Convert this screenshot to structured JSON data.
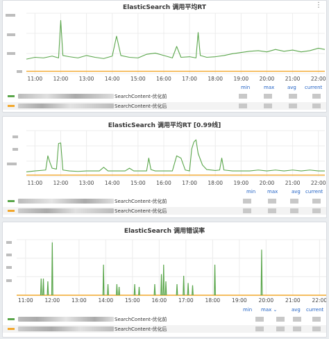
{
  "colors": {
    "series1": "#5aa64b",
    "series2": "#f2a72b",
    "grid": "#ececec",
    "legend_head": "#1f60c4"
  },
  "legend_headers": [
    "min",
    "max",
    "avg",
    "current"
  ],
  "panels": [
    {
      "title": "ElasticSearch 调用平均RT",
      "legend_headers": [
        "min",
        "max",
        "avg",
        "current"
      ],
      "legend": [
        {
          "label": "SearchContent-优化前",
          "color": "#5aa64b"
        },
        {
          "label": "SearchContent-优化后",
          "color": "#f2a72b"
        }
      ]
    },
    {
      "title": "ElasticSearch 调用平均RT [0.99线]",
      "legend_headers": [
        "min",
        "max",
        "avg",
        "current"
      ],
      "legend": [
        {
          "label": "SearchContent-优化前",
          "color": "#5aa64b"
        },
        {
          "label": "SearchContent-优化后",
          "color": "#f2a72b"
        }
      ]
    },
    {
      "title": "ElasticSearch 调用错误率",
      "legend_headers": [
        "min",
        "max ⌄",
        "avg",
        "current"
      ],
      "legend": [
        {
          "label": "SearchContent-优化前",
          "color": "#5aa64b"
        },
        {
          "label": "SearchContent-优化后",
          "color": "#f2a72b"
        }
      ]
    }
  ],
  "chart_data": [
    {
      "type": "line",
      "title": "ElasticSearch 调用平均RT",
      "x_ticks": [
        "11:00",
        "12:00",
        "13:00",
        "14:00",
        "15:00",
        "16:00",
        "17:00",
        "18:00",
        "19:00",
        "20:00",
        "21:00",
        "22:00"
      ],
      "xlim": [
        "10:40",
        "22:15"
      ],
      "ylim": [
        0,
        100
      ],
      "grid": true,
      "legend_placement": "bottom",
      "series": [
        {
          "name": "SearchContent-优化前",
          "x": [
            "10:40",
            "11:00",
            "11:20",
            "11:40",
            "11:55",
            "12:00",
            "12:05",
            "12:20",
            "12:40",
            "13:00",
            "13:20",
            "13:40",
            "14:00",
            "14:10",
            "14:20",
            "14:40",
            "15:00",
            "15:20",
            "15:40",
            "16:00",
            "16:20",
            "16:30",
            "16:40",
            "17:00",
            "17:15",
            "17:20",
            "17:25",
            "17:40",
            "18:00",
            "18:20",
            "18:40",
            "19:00",
            "19:20",
            "19:40",
            "20:00",
            "20:20",
            "20:40",
            "21:00",
            "21:20",
            "21:40",
            "22:00",
            "22:15"
          ],
          "values": [
            24,
            27,
            26,
            29,
            26,
            88,
            30,
            28,
            26,
            30,
            27,
            25,
            29,
            62,
            30,
            27,
            26,
            32,
            34,
            30,
            26,
            45,
            27,
            28,
            26,
            68,
            30,
            27,
            28,
            30,
            33,
            35,
            37,
            38,
            36,
            40,
            37,
            39,
            36,
            38,
            42,
            40
          ]
        },
        {
          "name": "SearchContent-优化后",
          "x": [
            "10:40",
            "12:00",
            "14:00",
            "16:00",
            "18:00",
            "20:00",
            "22:15"
          ],
          "values": [
            4,
            4,
            4,
            4,
            4,
            4,
            4
          ]
        }
      ]
    },
    {
      "type": "line",
      "title": "ElasticSearch 调用平均RT [0.99线]",
      "x_ticks": [
        "11:00",
        "12:00",
        "13:00",
        "14:00",
        "15:00",
        "16:00",
        "17:00",
        "18:00",
        "19:00",
        "20:00",
        "21:00",
        "22:00"
      ],
      "xlim": [
        "10:40",
        "22:15"
      ],
      "ylim": [
        0,
        100
      ],
      "grid": true,
      "legend_placement": "bottom",
      "series": [
        {
          "name": "SearchContent-优化前",
          "x": [
            "10:40",
            "11:00",
            "11:25",
            "11:30",
            "11:35",
            "11:40",
            "11:50",
            "11:55",
            "12:00",
            "12:05",
            "12:20",
            "12:40",
            "13:00",
            "13:30",
            "13:40",
            "13:50",
            "14:00",
            "14:30",
            "14:40",
            "14:50",
            "15:00",
            "15:20",
            "15:25",
            "15:30",
            "15:40",
            "16:00",
            "16:20",
            "16:30",
            "16:40",
            "16:50",
            "17:00",
            "17:05",
            "17:10",
            "17:15",
            "17:20",
            "17:30",
            "17:40",
            "18:00",
            "18:10",
            "18:15",
            "18:20",
            "18:40",
            "19:00",
            "19:20",
            "19:40",
            "20:00",
            "20:20",
            "20:40",
            "21:00",
            "21:20",
            "21:40",
            "22:00",
            "22:15"
          ],
          "values": [
            10,
            12,
            14,
            45,
            30,
            18,
            16,
            72,
            73,
            14,
            12,
            11,
            12,
            12,
            20,
            12,
            12,
            12,
            18,
            12,
            12,
            12,
            40,
            15,
            12,
            12,
            12,
            45,
            40,
            14,
            12,
            60,
            75,
            80,
            50,
            25,
            15,
            13,
            14,
            40,
            14,
            12,
            12,
            12,
            14,
            12,
            14,
            12,
            14,
            12,
            14,
            12,
            12
          ]
        },
        {
          "name": "SearchContent-优化后",
          "x": [
            "10:40",
            "12:00",
            "14:00",
            "16:00",
            "18:00",
            "20:00",
            "22:15"
          ],
          "values": [
            3,
            3,
            3,
            3,
            3,
            3,
            3
          ]
        }
      ]
    },
    {
      "type": "line",
      "title": "ElasticSearch 调用错误率",
      "x_ticks": [
        "11:00",
        "12:00",
        "13:00",
        "14:00",
        "15:00",
        "16:00",
        "17:00",
        "18:00",
        "19:00",
        "20:00",
        "21:00",
        "22:00"
      ],
      "xlim": [
        "10:40",
        "22:15"
      ],
      "ylim": [
        0,
        100
      ],
      "grid": true,
      "legend_placement": "bottom",
      "series": [
        {
          "name": "SearchContent-优化前",
          "x": [
            "11:35",
            "11:40",
            "11:50",
            "12:00",
            "13:55",
            "14:05",
            "14:25",
            "14:30",
            "15:05",
            "15:15",
            "15:50",
            "16:05",
            "16:10",
            "16:15",
            "16:40",
            "16:55",
            "17:05",
            "17:15",
            "18:05",
            "19:50"
          ],
          "values": [
            30,
            30,
            25,
            95,
            55,
            20,
            20,
            15,
            20,
            15,
            20,
            38,
            55,
            25,
            20,
            35,
            22,
            18,
            55,
            82
          ]
        },
        {
          "name": "SearchContent-优化后",
          "x": [
            "10:40",
            "12:00",
            "14:00",
            "16:00",
            "18:00",
            "20:00",
            "22:15"
          ],
          "values": [
            0,
            0,
            0,
            0,
            0,
            0,
            0
          ]
        }
      ]
    }
  ]
}
